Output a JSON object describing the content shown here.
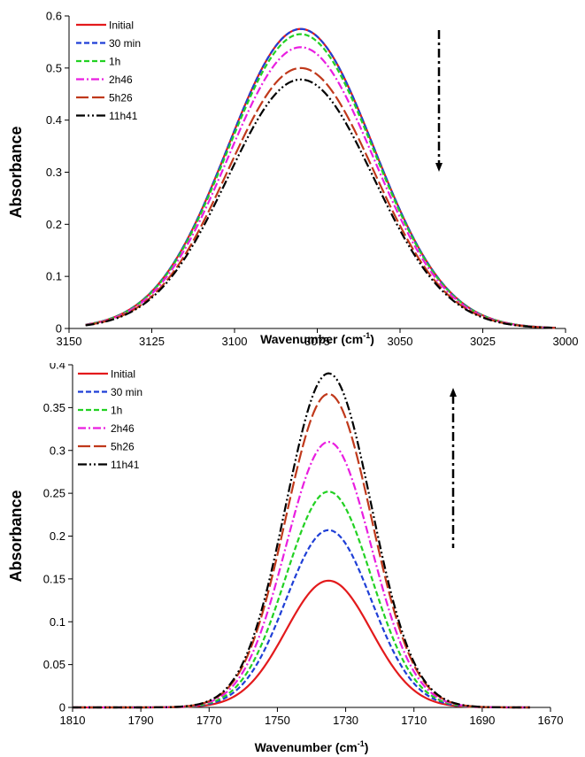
{
  "chart_data": [
    {
      "type": "line",
      "xlabel": "Wavenumber (cm-1)",
      "xlabel_main": "Wavenumber (cm",
      "xlabel_sup": "-1",
      "xlabel_close": ")",
      "ylabel": "Absorbance",
      "xlim": [
        3150,
        3000
      ],
      "ylim": [
        0,
        0.6
      ],
      "x_reversed": true,
      "x_ticks": [
        "3150",
        "3125",
        "3100",
        "3075",
        "3050",
        "3025",
        "3000"
      ],
      "y_ticks": [
        "0",
        "0.1",
        "0.2",
        "0.3",
        "0.4",
        "0.5",
        "0.6"
      ],
      "grid": false,
      "legend_position": "top-left",
      "peak_center": 3080,
      "peak_sigma": 22,
      "x_start": 3145,
      "x_end": 3003,
      "trend_arrow": "down",
      "series": [
        {
          "name": "Initial",
          "color": "#e31a1c",
          "style": "solid",
          "peak": 0.575
        },
        {
          "name": "30 min",
          "color": "#1f3fd6",
          "style": "dash",
          "peak": 0.575
        },
        {
          "name": "1h",
          "color": "#22d122",
          "style": "dash",
          "peak": 0.565
        },
        {
          "name": "2h46",
          "color": "#e91ee0",
          "style": "dashdot",
          "peak": 0.54
        },
        {
          "name": "5h26",
          "color": "#c0391b",
          "style": "longdash",
          "peak": 0.5
        },
        {
          "name": "11h41",
          "color": "#000000",
          "style": "dashdotdot",
          "peak": 0.478
        }
      ]
    },
    {
      "type": "line",
      "xlabel": "Wavenumber (cm-1)",
      "xlabel_main": "Wavenumber (cm",
      "xlabel_sup": "-1",
      "xlabel_close": ")",
      "ylabel": "Absorbance",
      "xlim": [
        1810,
        1670
      ],
      "ylim": [
        0,
        0.4
      ],
      "x_reversed": true,
      "x_ticks": [
        "1810",
        "1790",
        "1770",
        "1750",
        "1730",
        "1710",
        "1690",
        "1670"
      ],
      "y_ticks": [
        "0",
        "0.05",
        "0.1",
        "0.15",
        "0.2",
        "0.25",
        "0.3",
        "0.35",
        "0.4"
      ],
      "grid": false,
      "legend_position": "top-left",
      "peak_center": 1735,
      "peak_sigma": 12.5,
      "x_start": 1810,
      "x_end": 1676,
      "trend_arrow": "up",
      "series": [
        {
          "name": "Initial",
          "color": "#e31a1c",
          "style": "solid",
          "peak": 0.148
        },
        {
          "name": "30 min",
          "color": "#1f3fd6",
          "style": "dash",
          "peak": 0.207
        },
        {
          "name": "1h",
          "color": "#22d122",
          "style": "dash",
          "peak": 0.252
        },
        {
          "name": "2h46",
          "color": "#e91ee0",
          "style": "dashdot",
          "peak": 0.31
        },
        {
          "name": "5h26",
          "color": "#c0391b",
          "style": "longdash",
          "peak": 0.366
        },
        {
          "name": "11h41",
          "color": "#000000",
          "style": "dashdotdot",
          "peak": 0.39
        }
      ]
    }
  ]
}
